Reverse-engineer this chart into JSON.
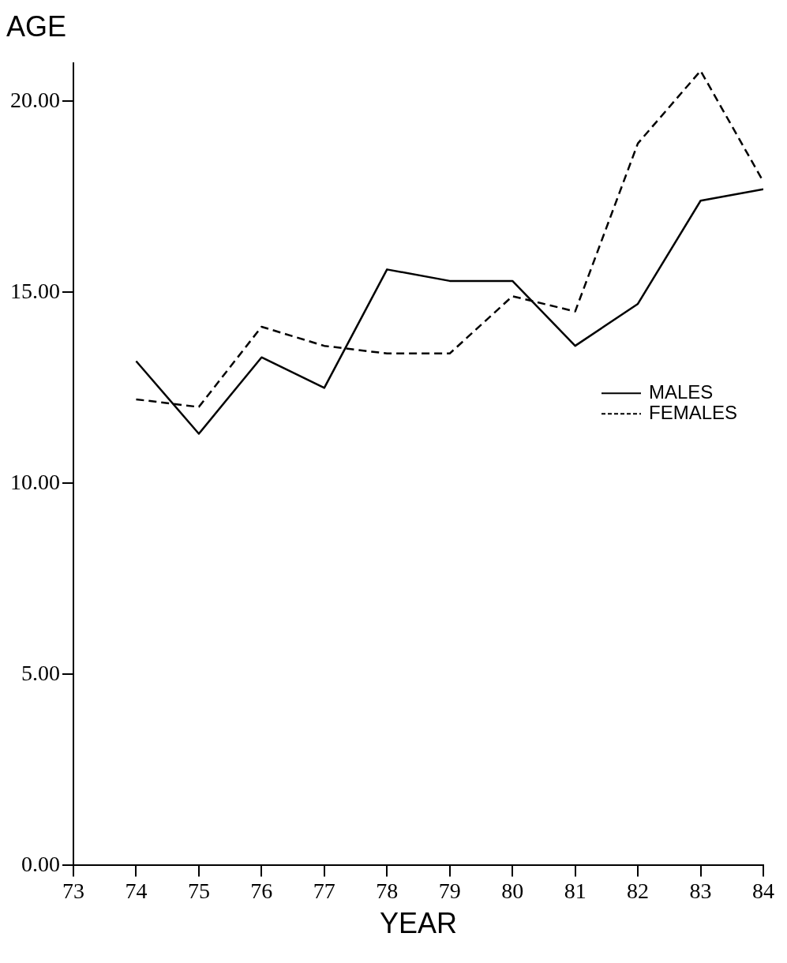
{
  "chart_data": {
    "type": "line",
    "ylabel": "AGE",
    "xlabel": "YEAR",
    "x": [
      74,
      75,
      76,
      77,
      78,
      79,
      80,
      81,
      82,
      83,
      84
    ],
    "series": [
      {
        "name": "MALES",
        "color": "#000000",
        "line_style": "solid",
        "values": [
          13.2,
          11.3,
          13.3,
          12.5,
          15.6,
          15.3,
          15.3,
          13.6,
          14.7,
          17.4,
          17.7
        ]
      },
      {
        "name": "FEMALES",
        "color": "#000000",
        "line_style": "dashed",
        "values": [
          12.2,
          12.0,
          14.1,
          13.6,
          13.4,
          13.4,
          14.9,
          14.5,
          18.9,
          20.8,
          17.9
        ]
      }
    ],
    "xlim": [
      73,
      84
    ],
    "xticks": [
      73,
      74,
      75,
      76,
      77,
      78,
      79,
      80,
      81,
      82,
      83,
      84
    ],
    "ylim": [
      0,
      21
    ],
    "yticks": [
      {
        "value": 0,
        "label": "0.00"
      },
      {
        "value": 5,
        "label": "5.00"
      },
      {
        "value": 10,
        "label": "10.00"
      },
      {
        "value": 15,
        "label": "15.00"
      },
      {
        "value": 20,
        "label": "20.00"
      }
    ],
    "legend": "right",
    "marker": "none",
    "grid": false
  }
}
